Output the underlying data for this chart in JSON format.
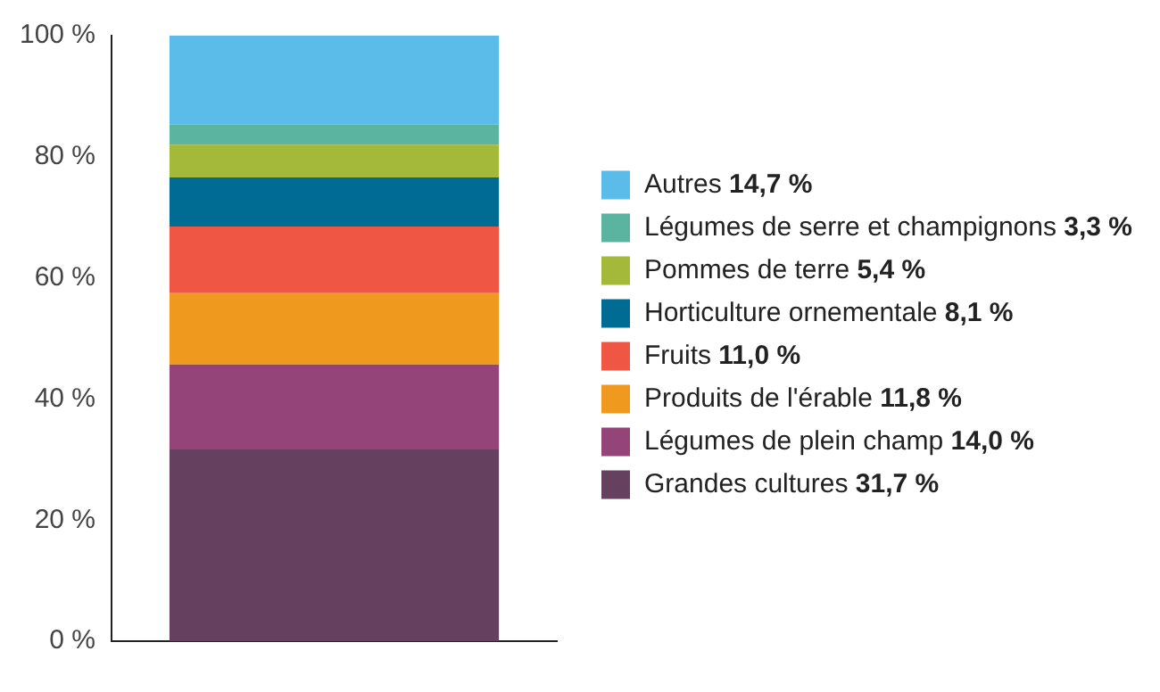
{
  "chart_data": {
    "type": "bar",
    "stacked": true,
    "categories": [
      null
    ],
    "series": [
      {
        "name": "Grandes cultures 31,7 %",
        "color": "#65405f",
        "values": [
          31.7
        ]
      },
      {
        "name": "Légumes de plein champ 14,0 %",
        "color": "#944478",
        "values": [
          14.0
        ]
      },
      {
        "name": "Produits de l'érable 11,8 %",
        "color": "#ef9a1e",
        "values": [
          11.8
        ]
      },
      {
        "name": "Fruits 11,0 %",
        "color": "#ef5643",
        "values": [
          11.0
        ]
      },
      {
        "name": "Horticulture ornementale 8,1 %",
        "color": "#006c93",
        "values": [
          8.1
        ]
      },
      {
        "name": "Pommes de terre 5,4 %",
        "color": "#a4b93a",
        "values": [
          5.4
        ]
      },
      {
        "name": "Légumes de serre et champignons 3,3 %",
        "color": "#5ab4a0",
        "values": [
          3.3
        ]
      },
      {
        "name": "Autres 14,7 %",
        "color": "#5bbbe9",
        "values": [
          14.7
        ]
      }
    ],
    "ylim": [
      0,
      100
    ],
    "yticks": [
      {
        "value": 0,
        "label": "0 %"
      },
      {
        "value": 20,
        "label": "20 %"
      },
      {
        "value": 40,
        "label": "40 %"
      },
      {
        "value": 60,
        "label": "60 %"
      },
      {
        "value": 80,
        "label": "80 %"
      },
      {
        "value": 100,
        "label": "100 %"
      }
    ],
    "grid": false,
    "legend": "right"
  }
}
